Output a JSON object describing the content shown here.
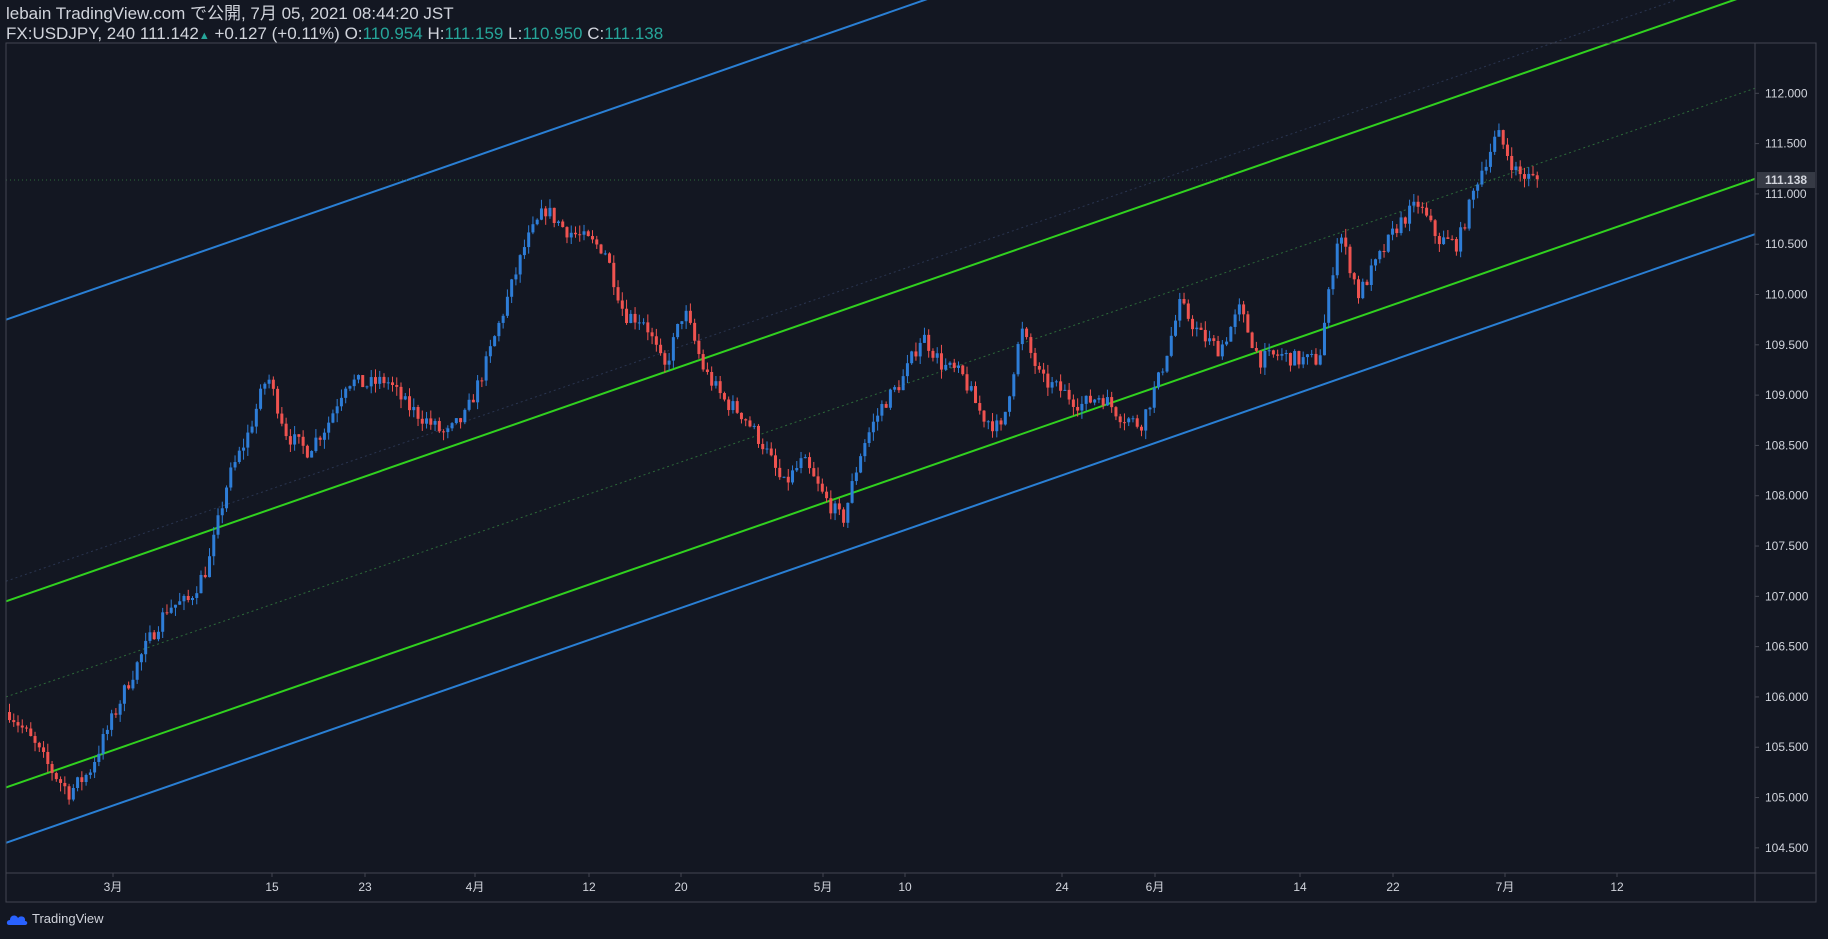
{
  "header": {
    "published": "lebain TradingView.com で公開, 7月 05, 2021 08:44:20 JST",
    "symbol": "FX:USDJPY, 240",
    "last": "111.142",
    "change_arrow": "▲",
    "change": "+0.127 (+0.11%)",
    "o_label": "O:",
    "o": "110.954",
    "h_label": "H:",
    "h": "111.159",
    "l_label": "L:",
    "l": "110.950",
    "c_label": "C:",
    "c": "111.138"
  },
  "footer": {
    "brand": "TradingView",
    "logo_icon": "tradingview-cloud-icon"
  },
  "colors": {
    "background": "#131722",
    "up": "#2e7dd7",
    "down": "#ef5350",
    "channel_blue": "#2a7fd4",
    "channel_green": "#31d11f",
    "midline": "#2d6a3a",
    "text_green": "#26a69a",
    "axis_line": "#434651"
  },
  "chart_data": {
    "type": "candlestick",
    "symbol": "FX:USDJPY",
    "timeframe": "240",
    "ylim": [
      104.25,
      112.5
    ],
    "y_ticks": [
      "104.500",
      "105.000",
      "105.500",
      "106.000",
      "106.500",
      "107.000",
      "107.500",
      "108.000",
      "108.500",
      "109.000",
      "109.500",
      "110.000",
      "110.500",
      "111.000",
      "111.500",
      "112.000"
    ],
    "x_ticks": [
      "3月",
      "15",
      "23",
      "4月",
      "12",
      "20",
      "5月",
      "10",
      "24",
      "6月",
      "14",
      "22",
      "7月",
      "12"
    ],
    "last_price_label": "111.138",
    "price_path": [
      105.85,
      105.6,
      105.3,
      105.05,
      105.25,
      105.7,
      106.15,
      106.55,
      106.9,
      106.95,
      107.3,
      108.15,
      108.6,
      109.2,
      108.6,
      108.45,
      108.7,
      109.15,
      109.1,
      109.15,
      108.9,
      108.75,
      108.6,
      108.8,
      109.3,
      109.9,
      110.5,
      110.85,
      110.65,
      110.55,
      110.45,
      109.8,
      109.75,
      109.25,
      109.85,
      109.25,
      108.95,
      108.8,
      108.5,
      108.1,
      108.35,
      108.0,
      107.75,
      108.5,
      108.9,
      109.15,
      109.6,
      109.3,
      109.2,
      108.8,
      108.65,
      109.65,
      109.15,
      109.05,
      108.9,
      109.0,
      108.8,
      108.7,
      109.2,
      109.9,
      109.6,
      109.45,
      109.85,
      109.35,
      109.4,
      109.35,
      109.35,
      110.65,
      110.0,
      110.35,
      110.7,
      110.9,
      110.55,
      110.5,
      111.15,
      111.6,
      111.2,
      111.14
    ]
  }
}
